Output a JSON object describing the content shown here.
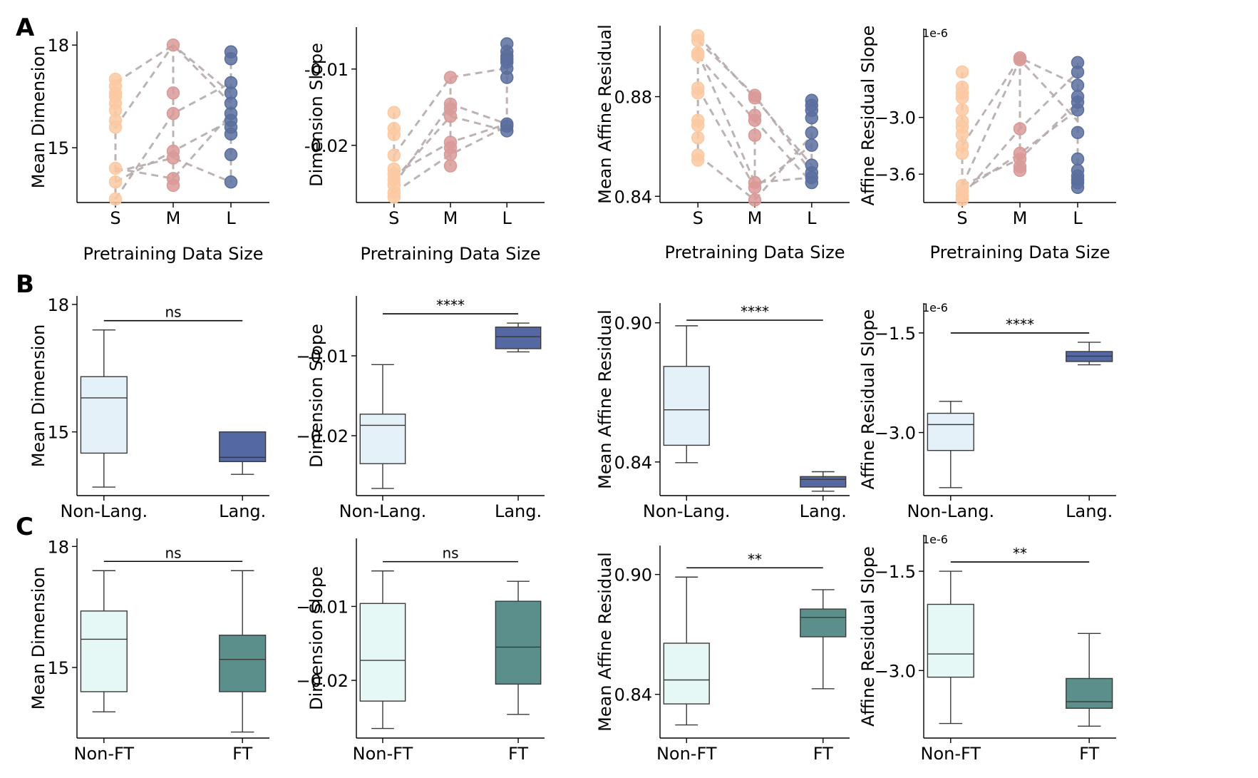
{
  "figure": {
    "rows": [
      {
        "label": "A"
      },
      {
        "label": "B"
      },
      {
        "label": "C"
      }
    ],
    "colors": {
      "S": "#fbc9a2",
      "M": "#d99a98",
      "L": "#5a6e9e",
      "non_lang": "#e5f1f8",
      "lang": "#5468a4",
      "non_ft": "#e6f8f5",
      "ft": "#5b8f8b",
      "line": "#b6abab",
      "axis": "#000000"
    }
  },
  "chart_data": [
    {
      "id": "A1",
      "type": "scatter",
      "title": "",
      "xlabel": "Pretraining Data Size",
      "ylabel": "Mean Dimension",
      "categories": [
        "S",
        "M",
        "L"
      ],
      "ylim": [
        13.4,
        18.4
      ],
      "yticks": [
        15,
        18
      ],
      "ytick_labels": [
        "15",
        "18"
      ],
      "axis_scale_label": "",
      "points": {
        "S": [
          17.0,
          16.8,
          16.6,
          16.5,
          16.3,
          16.1,
          15.8,
          15.6,
          14.4,
          14.0,
          13.5
        ],
        "M": [
          18.0,
          16.6,
          16.0,
          14.9,
          14.7,
          14.1,
          13.9
        ],
        "L": [
          17.8,
          17.6,
          16.9,
          16.6,
          16.3,
          16.0,
          15.8,
          15.6,
          15.4,
          14.8,
          14.0
        ]
      },
      "connections": [
        [
          16.9,
          18.0,
          16.3
        ],
        [
          15.6,
          18.0,
          16.6
        ],
        [
          14.4,
          14.1,
          16.0
        ],
        [
          14.0,
          14.9,
          15.8
        ],
        [
          13.5,
          16.0,
          16.9
        ],
        [
          14.3,
          14.7,
          14.0
        ]
      ]
    },
    {
      "id": "A2",
      "type": "scatter",
      "title": "",
      "xlabel": "Pretraining Data Size",
      "ylabel": "Dimension Slope",
      "categories": [
        "S",
        "M",
        "L"
      ],
      "ylim": [
        -0.0275,
        -0.0045
      ],
      "yticks": [
        -0.02,
        -0.01
      ],
      "ytick_labels": [
        "-0.02",
        "-0.01"
      ],
      "axis_scale_label": "",
      "points": {
        "S": [
          -0.0157,
          -0.0178,
          -0.0186,
          -0.0213,
          -0.0231,
          -0.0238,
          -0.0245,
          -0.0252,
          -0.0262,
          -0.0268
        ],
        "M": [
          -0.0111,
          -0.0146,
          -0.0152,
          -0.0162,
          -0.0196,
          -0.0203,
          -0.0212,
          -0.0227
        ],
        "L": [
          -0.0067,
          -0.0077,
          -0.0083,
          -0.0087,
          -0.0091,
          -0.0099,
          -0.0111,
          -0.0172,
          -0.0175,
          -0.0181
        ]
      },
      "connections": [
        [
          -0.0213,
          -0.0111,
          -0.0099
        ],
        [
          -0.0245,
          -0.0162,
          -0.0181
        ],
        [
          -0.0252,
          -0.0146,
          -0.0172
        ],
        [
          -0.0262,
          -0.0212,
          -0.0175
        ],
        [
          -0.0238,
          -0.0196,
          -0.0172
        ]
      ]
    },
    {
      "id": "A3",
      "type": "scatter",
      "title": "",
      "xlabel": "Pretraining Data Size",
      "ylabel": "Mean Affine Residual",
      "categories": [
        "S",
        "M",
        "L"
      ],
      "ylim": [
        0.8375,
        0.9085
      ],
      "yticks": [
        0.84,
        0.88
      ],
      "ytick_labels": [
        "0.84",
        "0.88"
      ],
      "axis_scale_label": "",
      "points": {
        "S": [
          0.9045,
          0.9025,
          0.8975,
          0.8965,
          0.8835,
          0.8815,
          0.8705,
          0.8685,
          0.8635,
          0.8565,
          0.8545
        ],
        "M": [
          0.8805,
          0.8795,
          0.8725,
          0.8705,
          0.8645,
          0.8455,
          0.8435,
          0.8385
        ],
        "L": [
          0.8785,
          0.8765,
          0.8745,
          0.8715,
          0.8655,
          0.8605,
          0.8525,
          0.8495,
          0.8475,
          0.8455
        ]
      },
      "connections": [
        [
          0.9045,
          0.8795,
          0.8525
        ],
        [
          0.9025,
          0.8805,
          0.8495
        ],
        [
          0.8965,
          0.8705,
          0.8455
        ],
        [
          0.8835,
          0.8435,
          0.8605
        ],
        [
          0.8975,
          0.8455,
          0.8475
        ],
        [
          0.8565,
          0.8385,
          0.8645
        ]
      ]
    },
    {
      "id": "A4",
      "type": "scatter",
      "title": "",
      "xlabel": "Pretraining Data Size",
      "ylabel": "Affine Residual Slope",
      "categories": [
        "S",
        "M",
        "L"
      ],
      "ylim": [
        -3.9,
        -2.06
      ],
      "yticks": [
        -3.6,
        -3.0
      ],
      "ytick_labels": [
        "−3.6",
        "−3.0"
      ],
      "axis_scale_label": "1e-6",
      "points": {
        "S": [
          -2.52,
          -2.68,
          -2.74,
          -2.79,
          -2.92,
          -3.04,
          -3.1,
          -3.18,
          -3.3,
          -3.38,
          -3.72,
          -3.78,
          -3.83,
          -3.87
        ],
        "M": [
          -2.37,
          -2.39,
          -3.12,
          -3.38,
          -3.44,
          -3.52,
          -3.56
        ],
        "L": [
          -2.42,
          -2.52,
          -2.66,
          -2.78,
          -2.84,
          -2.92,
          -3.16,
          -3.44,
          -3.56,
          -3.62,
          -3.66,
          -3.69,
          -3.74
        ]
      },
      "connections": [
        [
          -3.3,
          -2.37,
          -2.66
        ],
        [
          -3.72,
          -2.39,
          -3.04
        ],
        [
          -3.78,
          -3.38,
          -2.92
        ],
        [
          -3.72,
          -3.44,
          -2.84
        ],
        [
          -3.83,
          -3.12,
          -2.52
        ]
      ]
    },
    {
      "id": "B1",
      "type": "box",
      "title": "",
      "xlabel": "",
      "ylabel": "Mean Dimension",
      "categories": [
        "Non-Lang.",
        "Lang."
      ],
      "ylim": [
        13.5,
        18.2
      ],
      "yticks": [
        15,
        18
      ],
      "ytick_labels": [
        "15",
        "18"
      ],
      "axis_scale_label": "",
      "boxes": [
        {
          "name": "Non-Lang.",
          "whisker_low": 13.7,
          "q1": 14.5,
          "median": 15.8,
          "q3": 16.3,
          "whisker_high": 17.4
        },
        {
          "name": "Lang.",
          "whisker_low": 14.0,
          "q1": 14.3,
          "median": 14.4,
          "q3": 15.0,
          "whisker_high": 15.0
        }
      ],
      "significance": "ns"
    },
    {
      "id": "B2",
      "type": "box",
      "title": "",
      "xlabel": "",
      "ylabel": "Dimension Slope",
      "categories": [
        "Non-Lang.",
        "Lang."
      ],
      "ylim": [
        -0.0275,
        -0.0025
      ],
      "yticks": [
        -0.02,
        -0.01
      ],
      "ytick_labels": [
        "−0.02",
        "−0.01"
      ],
      "axis_scale_label": "",
      "boxes": [
        {
          "name": "Non-Lang.",
          "whisker_low": -0.0266,
          "q1": -0.0235,
          "median": -0.0187,
          "q3": -0.0173,
          "whisker_high": -0.0111
        },
        {
          "name": "Lang.",
          "whisker_low": -0.0095,
          "q1": -0.0091,
          "median": -0.0076,
          "q3": -0.0064,
          "whisker_high": -0.0059
        }
      ],
      "significance": "****"
    },
    {
      "id": "B3",
      "type": "box",
      "title": "",
      "xlabel": "",
      "ylabel": "Mean Affine Residual",
      "categories": [
        "Non-Lang.",
        "Lang."
      ],
      "ylim": [
        0.8255,
        0.9085
      ],
      "yticks": [
        0.84,
        0.9
      ],
      "ytick_labels": [
        "0.84",
        "0.90"
      ],
      "axis_scale_label": "",
      "boxes": [
        {
          "name": "Non-Lang.",
          "whisker_low": 0.8397,
          "q1": 0.8472,
          "median": 0.8625,
          "q3": 0.8812,
          "whisker_high": 0.8987
        },
        {
          "name": "Lang.",
          "whisker_low": 0.8274,
          "q1": 0.8292,
          "median": 0.8325,
          "q3": 0.8337,
          "whisker_high": 0.8358
        }
      ],
      "significance": "****"
    },
    {
      "id": "B4",
      "type": "box",
      "title": "",
      "xlabel": "",
      "ylabel": "Affine Residual Slope",
      "categories": [
        "Non-Lang.",
        "Lang."
      ],
      "ylim": [
        -3.95,
        -1.05
      ],
      "yticks": [
        -3.0,
        -1.5
      ],
      "ytick_labels": [
        "−3.0",
        "−1.5"
      ],
      "axis_scale_label": "1e-6",
      "boxes": [
        {
          "name": "Non-Lang.",
          "whisker_low": -3.83,
          "q1": -3.27,
          "median": -2.88,
          "q3": -2.71,
          "whisker_high": -2.53
        },
        {
          "name": "Lang.",
          "whisker_low": -1.98,
          "q1": -1.93,
          "median": -1.85,
          "q3": -1.78,
          "whisker_high": -1.64
        }
      ],
      "significance": "****"
    },
    {
      "id": "C1",
      "type": "box",
      "title": "",
      "xlabel": "",
      "ylabel": "Mean Dimension",
      "categories": [
        "Non-FT",
        "FT"
      ],
      "ylim": [
        13.25,
        18.2
      ],
      "yticks": [
        15,
        18
      ],
      "ytick_labels": [
        "15",
        "18"
      ],
      "axis_scale_label": "",
      "boxes": [
        {
          "name": "Non-FT",
          "whisker_low": 13.9,
          "q1": 14.4,
          "median": 15.7,
          "q3": 16.4,
          "whisker_high": 17.4
        },
        {
          "name": "FT",
          "whisker_low": 13.4,
          "q1": 14.4,
          "median": 15.2,
          "q3": 15.8,
          "whisker_high": 17.4
        }
      ],
      "significance": "ns"
    },
    {
      "id": "C2",
      "type": "box",
      "title": "",
      "xlabel": "",
      "ylabel": "Dimension Slope",
      "categories": [
        "Non-FT",
        "FT"
      ],
      "ylim": [
        -0.0278,
        -0.0008
      ],
      "yticks": [
        -0.02,
        -0.01
      ],
      "ytick_labels": [
        "−0.02",
        "−0.01"
      ],
      "axis_scale_label": "",
      "boxes": [
        {
          "name": "Non-FT",
          "whisker_low": -0.0265,
          "q1": -0.0228,
          "median": -0.0173,
          "q3": -0.0096,
          "whisker_high": -0.0052
        },
        {
          "name": "FT",
          "whisker_low": -0.0246,
          "q1": -0.0205,
          "median": -0.0155,
          "q3": -0.0093,
          "whisker_high": -0.0066
        }
      ],
      "significance": "ns"
    },
    {
      "id": "C3",
      "type": "box",
      "title": "",
      "xlabel": "",
      "ylabel": "Mean Affine Residual",
      "categories": [
        "Non-FT",
        "FT"
      ],
      "ylim": [
        0.8181,
        0.9145
      ],
      "yticks": [
        0.84,
        0.9
      ],
      "ytick_labels": [
        "0.84",
        "0.90"
      ],
      "axis_scale_label": "",
      "boxes": [
        {
          "name": "Non-FT",
          "whisker_low": 0.8247,
          "q1": 0.8352,
          "median": 0.8472,
          "q3": 0.8656,
          "whisker_high": 0.8987
        },
        {
          "name": "FT",
          "whisker_low": 0.8428,
          "q1": 0.8688,
          "median": 0.8785,
          "q3": 0.8827,
          "whisker_high": 0.8924
        }
      ],
      "significance": "**"
    },
    {
      "id": "C4",
      "type": "box",
      "title": "",
      "xlabel": "",
      "ylabel": "Affine Residual Slope",
      "categories": [
        "Non-FT",
        "FT"
      ],
      "ylim": [
        -4.02,
        -0.95
      ],
      "yticks": [
        -3.0,
        -1.5
      ],
      "ytick_labels": [
        "−3.0",
        "−1.5"
      ],
      "axis_scale_label": "1e-6",
      "boxes": [
        {
          "name": "Non-FT",
          "whisker_low": -3.8,
          "q1": -3.1,
          "median": -2.75,
          "q3": -2.0,
          "whisker_high": -1.5
        },
        {
          "name": "FT",
          "whisker_low": -3.84,
          "q1": -3.57,
          "median": -3.47,
          "q3": -3.12,
          "whisker_high": -2.44
        }
      ],
      "significance": "**"
    }
  ]
}
